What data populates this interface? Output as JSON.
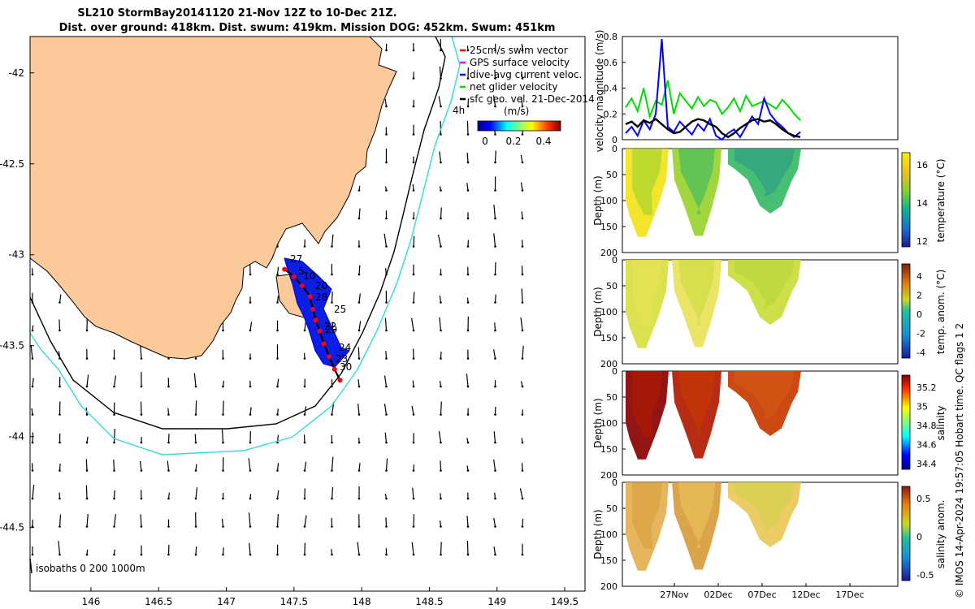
{
  "title": {
    "line1": "SL210 StormBay20141120 21-Nov 12Z to 10-Dec 21Z.",
    "line2": "Dist. over ground: 418km. Dist. swum: 419km. Mission DOG: 452km. Swum: 451km"
  },
  "legend": {
    "items": [
      {
        "label": "25cm/s swim vector",
        "color": "#ff0000"
      },
      {
        "label": "GPS surface velocity",
        "color": "#ff00ff"
      },
      {
        "label": "dive-avg current veloc.",
        "color": "#0000ff"
      },
      {
        "label": "net glider velocity",
        "color": "#00dd00"
      },
      {
        "label": "sfc geo. vel. 21-Dec-2014",
        "color": "#000000"
      }
    ],
    "marker_4h": "4h",
    "colorbar_unit": "(m/s)",
    "colorbar_ticks": [
      "0",
      "0.2",
      "0.4"
    ],
    "isobaths": "isobaths  0   200  1000m"
  },
  "credit": "© IMOS 14-Apr-2024 19:57:05 Hobart time. QC flags 1  2",
  "chart_data": [
    {
      "type": "map",
      "x_ticks": [
        "146",
        "146.5",
        "147",
        "147.5",
        "148",
        "148.5",
        "149",
        "149.5"
      ],
      "y_ticks": [
        "-42",
        "-42.5",
        "-43",
        "-43.5",
        "-44",
        "-44.5"
      ],
      "xlim": [
        145.55,
        149.65
      ],
      "ylim": [
        -44.85,
        -41.8
      ],
      "track_labels": [
        "27",
        "5",
        "10",
        "20",
        "28",
        "25",
        "22",
        "29",
        "24",
        "23",
        "30"
      ],
      "track": [
        [
          147.43,
          -43.08
        ],
        [
          147.5,
          -43.12
        ],
        [
          147.56,
          -43.17
        ],
        [
          147.62,
          -43.23
        ],
        [
          147.64,
          -43.3
        ],
        [
          147.66,
          -43.36
        ],
        [
          147.69,
          -43.42
        ],
        [
          147.72,
          -43.49
        ],
        [
          147.76,
          -43.56
        ],
        [
          147.8,
          -43.63
        ],
        [
          147.84,
          -43.69
        ]
      ]
    },
    {
      "type": "line",
      "ylabel": "velocity magnitude (m/s)",
      "ylim": [
        0,
        0.8
      ],
      "y_ticks": [
        "0",
        "0.2",
        "0.4",
        "0.6",
        "0.8"
      ],
      "series": [
        {
          "color": "#00dd00",
          "values": [
            0.25,
            0.32,
            0.22,
            0.4,
            0.18,
            0.3,
            0.27,
            0.46,
            0.2,
            0.36,
            0.3,
            0.24,
            0.33,
            0.26,
            0.31,
            0.29,
            0.2,
            0.25,
            0.32,
            0.22,
            0.34,
            0.26,
            0.28,
            0.3,
            0.27,
            0.24,
            0.31,
            0.26,
            0.2,
            0.15
          ]
        },
        {
          "color": "#0000ff",
          "values": [
            0.05,
            0.1,
            0.03,
            0.15,
            0.08,
            0.2,
            0.78,
            0.1,
            0.06,
            0.14,
            0.09,
            0.04,
            0.12,
            0.07,
            0.16,
            0.03,
            0.0,
            0.05,
            0.08,
            0.02,
            0.1,
            0.18,
            0.12,
            0.32,
            0.2,
            0.14,
            0.1,
            0.05,
            0.02,
            0.06
          ]
        },
        {
          "color": "#000000",
          "values": [
            0.12,
            0.14,
            0.1,
            0.15,
            0.13,
            0.16,
            0.12,
            0.08,
            0.05,
            0.06,
            0.1,
            0.14,
            0.16,
            0.15,
            0.12,
            0.1,
            0.05,
            0.02,
            0.05,
            0.09,
            0.12,
            0.15,
            0.16,
            0.14,
            0.15,
            0.12,
            0.08,
            0.05,
            0.03,
            0.02
          ]
        }
      ]
    },
    {
      "type": "heatmap",
      "ylabel": "Depth (m)",
      "clabel": "temperature (°C)",
      "y_ticks": [
        "0",
        "50",
        "100",
        "150",
        "200"
      ],
      "c_ticks": [
        "16",
        "14",
        "12"
      ]
    },
    {
      "type": "heatmap",
      "ylabel": "Depth (m)",
      "clabel": "temp. anom. (°C)",
      "y_ticks": [
        "0",
        "50",
        "100",
        "150",
        "200"
      ],
      "c_ticks": [
        "4",
        "2",
        "0",
        "-2",
        "-4"
      ]
    },
    {
      "type": "heatmap",
      "ylabel": "Depth (m)",
      "clabel": "salinity",
      "y_ticks": [
        "0",
        "50",
        "100",
        "150",
        "200"
      ],
      "c_ticks": [
        "35.2",
        "35",
        "34.8",
        "34.6",
        "34.4"
      ]
    },
    {
      "type": "heatmap",
      "ylabel": "Depth (m)",
      "clabel": "salinity anom.",
      "y_ticks": [
        "0",
        "50",
        "100",
        "150",
        "200"
      ],
      "c_ticks": [
        "0.5",
        "0",
        "-0.5"
      ],
      "x_ticks": [
        "27Nov",
        "02Dec",
        "07Dec",
        "12Dec",
        "17Dec"
      ]
    }
  ]
}
